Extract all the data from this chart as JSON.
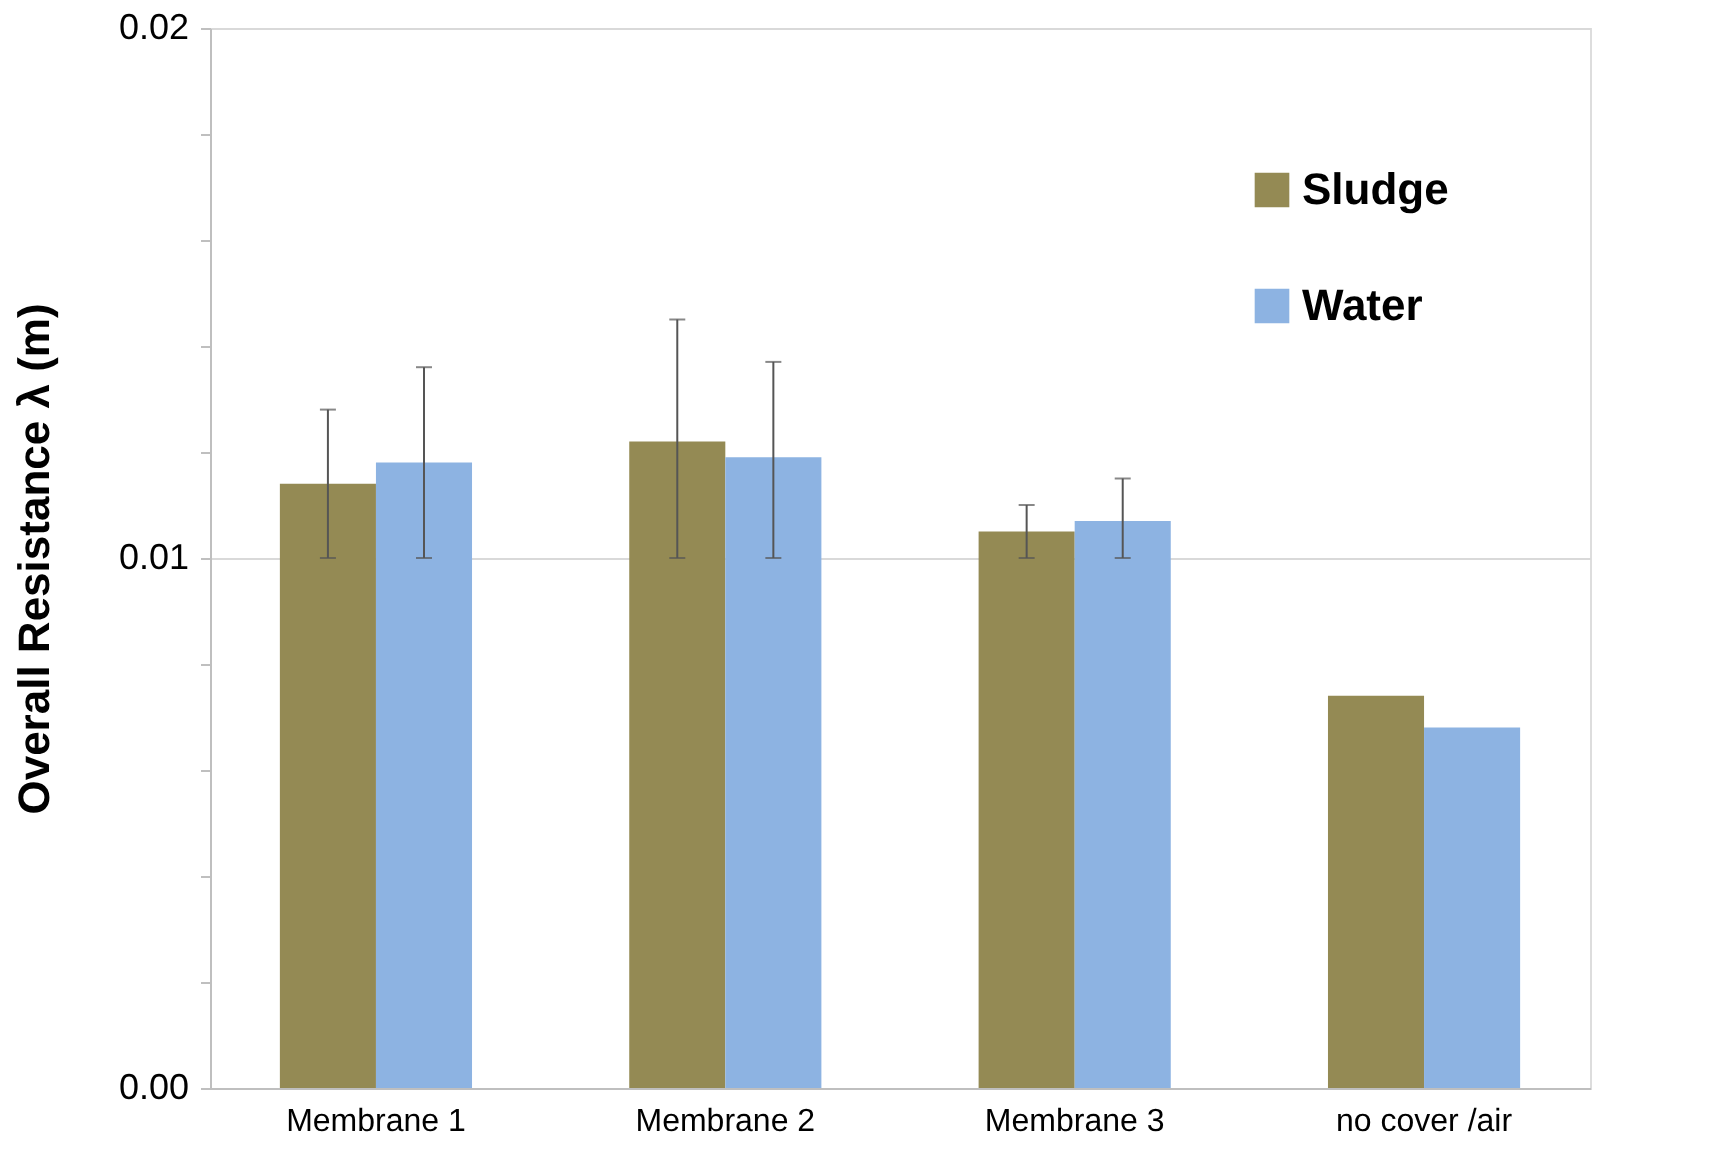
{
  "chart_data": {
    "type": "bar",
    "ylabel": "Overall Resistance   λ (m)",
    "categories": [
      "Membrane 1",
      "Membrane 2",
      "Membrane 3",
      "no cover /air"
    ],
    "series": [
      {
        "name": "Sludge",
        "color": "#948a54",
        "values": [
          0.0114,
          0.0122,
          0.0105,
          0.0074
        ],
        "errors": [
          [
            0.01,
            0.0128
          ],
          [
            0.01,
            0.0145
          ],
          [
            0.01,
            0.011
          ],
          null
        ]
      },
      {
        "name": "Water",
        "color": "#8db3e2",
        "values": [
          0.0118,
          0.0119,
          0.0107,
          0.0068
        ],
        "errors": [
          [
            0.01,
            0.0136
          ],
          [
            0.01,
            0.0137
          ],
          [
            0.01,
            0.0115
          ],
          null
        ]
      }
    ],
    "ylim": [
      0,
      0.02
    ],
    "yticks": [
      "0.00",
      {
        "value": 0.002,
        "label": null
      },
      {
        "value": 0.004,
        "label": null
      },
      {
        "value": 0.006,
        "label": null
      },
      {
        "value": 0.008,
        "label": null
      },
      {
        "value": 0.01,
        "label": "0.01"
      },
      {
        "value": 0.012,
        "label": null
      },
      {
        "value": 0.014,
        "label": null
      },
      {
        "value": 0.016,
        "label": null
      },
      {
        "value": 0.018,
        "label": null
      },
      {
        "value": 0.02,
        "label": "0.02"
      }
    ],
    "grid": "y",
    "legend": "top right"
  }
}
